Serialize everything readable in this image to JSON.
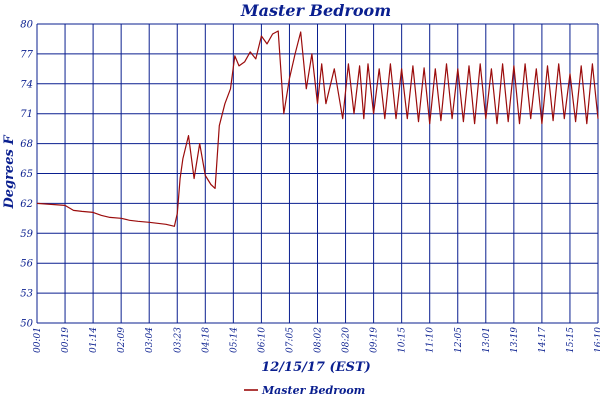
{
  "chart_data": {
    "type": "line",
    "title": "Master Bedroom",
    "xlabel": "12/15/17 (EST)",
    "ylabel": "Degrees F",
    "ylim": [
      50,
      80
    ],
    "yticks": [
      50,
      53,
      56,
      59,
      62,
      65,
      68,
      71,
      74,
      77,
      80
    ],
    "xticks": [
      "00:01",
      "00:19",
      "01:14",
      "02:09",
      "03:04",
      "03:23",
      "04:18",
      "05:14",
      "06:10",
      "07:05",
      "08:02",
      "08:20",
      "09:19",
      "10:15",
      "11:10",
      "12:05",
      "13:01",
      "13:19",
      "14:17",
      "15:15",
      "16:10"
    ],
    "grid": true,
    "legend_position": "bottom-center",
    "colors": {
      "series": "#9b0c0c",
      "grid": "#0a1f8f",
      "text": "#0a1f8f"
    },
    "series": [
      {
        "name": "Master Bedroom",
        "x": [
          0,
          0.5,
          1,
          1.3,
          1.6,
          2,
          2.3,
          2.6,
          3,
          3.3,
          3.6,
          4,
          4.3,
          4.6,
          4.9,
          5.0,
          5.1,
          5.2,
          5.4,
          5.6,
          5.8,
          6.0,
          6.2,
          6.35,
          6.5,
          6.7,
          6.9,
          7.05,
          7.2,
          7.4,
          7.6,
          7.8,
          8.0,
          8.2,
          8.4,
          8.6,
          8.8,
          9.0,
          9.2,
          9.4,
          9.6,
          9.8,
          10.0,
          10.15,
          10.3,
          10.6,
          10.9,
          11.1,
          11.3,
          11.5,
          11.65,
          11.8,
          12.0,
          12.2,
          12.4,
          12.6,
          12.8,
          13.0,
          13.2,
          13.4,
          13.6,
          13.8,
          14.0,
          14.2,
          14.4,
          14.6,
          14.8,
          15.0,
          15.2,
          15.4,
          15.6,
          15.8,
          16.0,
          16.2,
          16.4,
          16.6,
          16.8,
          17.0,
          17.2,
          17.4,
          17.6,
          17.8,
          18.0,
          18.2,
          18.4,
          18.6,
          18.8,
          19.0,
          19.2,
          19.4,
          19.6,
          19.8,
          20.0
        ],
        "values": [
          62.0,
          61.9,
          61.8,
          61.3,
          61.2,
          61.1,
          60.8,
          60.6,
          60.5,
          60.3,
          60.2,
          60.1,
          60.0,
          59.9,
          59.7,
          61.0,
          64.5,
          66.5,
          68.8,
          64.5,
          68.0,
          64.8,
          63.9,
          63.5,
          69.8,
          72.0,
          73.5,
          76.8,
          75.8,
          76.2,
          77.2,
          76.5,
          78.8,
          78.0,
          79.0,
          79.3,
          71.0,
          74.5,
          77.0,
          79.2,
          73.5,
          77.0,
          72.0,
          76.0,
          72.0,
          75.5,
          70.5,
          76.0,
          71.0,
          75.8,
          70.5,
          76.0,
          71.0,
          75.5,
          70.5,
          76.0,
          70.5,
          75.5,
          70.5,
          75.8,
          70.2,
          75.6,
          70.0,
          75.5,
          70.3,
          76.0,
          70.5,
          75.5,
          70.2,
          75.8,
          70.0,
          76.0,
          70.5,
          75.5,
          70.0,
          76.0,
          70.2,
          75.8,
          70.0,
          76.0,
          70.5,
          75.5,
          70.0,
          75.8,
          70.3,
          76.0,
          70.5,
          75.0,
          70.2,
          75.8,
          70.0,
          76.0,
          70.5
        ]
      }
    ]
  }
}
